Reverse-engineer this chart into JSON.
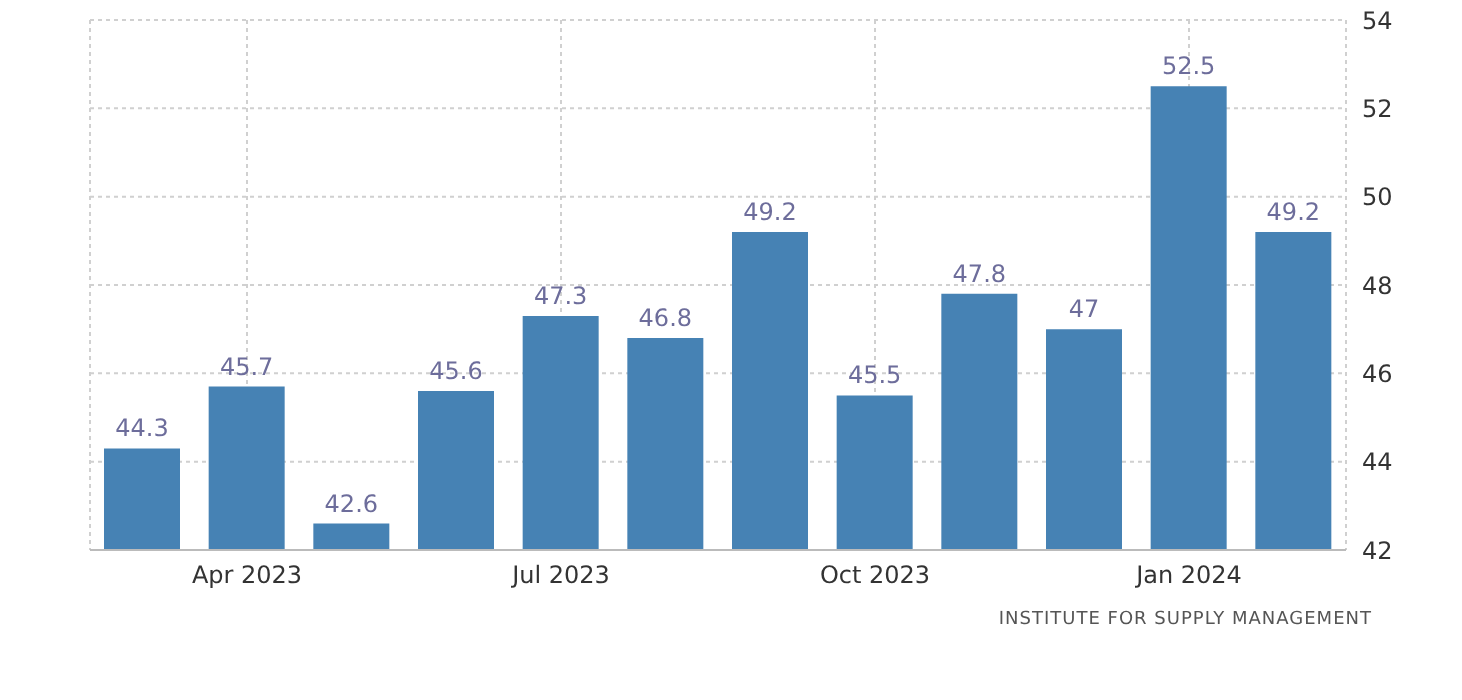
{
  "chart_data": {
    "type": "bar",
    "categories": [
      null,
      "Apr 2023",
      null,
      null,
      "Jul 2023",
      null,
      null,
      "Oct 2023",
      null,
      null,
      "Jan 2024",
      null
    ],
    "values": [
      44.3,
      45.7,
      42.6,
      45.6,
      47.3,
      46.8,
      49.2,
      45.5,
      47.8,
      47,
      52.5,
      49.2
    ],
    "color": "#4682b4",
    "ylim": [
      42,
      54
    ],
    "yticks": [
      42,
      44,
      46,
      48,
      50,
      52,
      54
    ],
    "grid": true,
    "data_labels": true,
    "annotations": [
      "INSTITUTE FOR SUPPLY MANAGEMENT"
    ]
  }
}
